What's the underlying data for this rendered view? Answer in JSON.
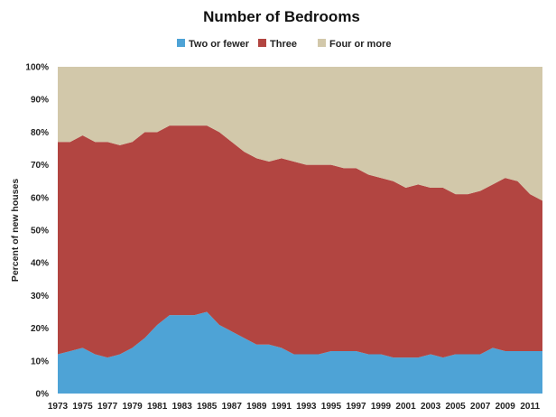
{
  "chart_data": {
    "type": "area",
    "stacked": true,
    "title": "Number of Bedrooms",
    "xlabel": "",
    "ylabel": "Percent of new houses",
    "ylim": [
      0,
      100
    ],
    "y_ticks": [
      "0%",
      "10%",
      "20%",
      "30%",
      "40%",
      "50%",
      "60%",
      "70%",
      "80%",
      "90%",
      "100%"
    ],
    "x_ticks": [
      "1973",
      "1975",
      "1977",
      "1979",
      "1981",
      "1983",
      "1985",
      "1987",
      "1989",
      "1991",
      "1993",
      "1995",
      "1997",
      "1999",
      "2001",
      "2003",
      "2005",
      "2007",
      "2009",
      "2011"
    ],
    "grid": false,
    "legend_position": "top",
    "x": [
      1973,
      1974,
      1975,
      1976,
      1977,
      1978,
      1979,
      1980,
      1981,
      1982,
      1983,
      1984,
      1985,
      1986,
      1987,
      1988,
      1989,
      1990,
      1991,
      1992,
      1993,
      1994,
      1995,
      1996,
      1997,
      1998,
      1999,
      2000,
      2001,
      2002,
      2003,
      2004,
      2005,
      2006,
      2007,
      2008,
      2009,
      2010,
      2011,
      2012
    ],
    "series": [
      {
        "name": "Two or fewer",
        "color": "#4ea3d6",
        "values": [
          12,
          13,
          14,
          12,
          11,
          12,
          14,
          17,
          21,
          24,
          24,
          24,
          25,
          21,
          19,
          17,
          15,
          15,
          14,
          12,
          12,
          12,
          13,
          13,
          13,
          12,
          12,
          11,
          11,
          11,
          12,
          11,
          12,
          12,
          12,
          14,
          13,
          13,
          13,
          13
        ]
      },
      {
        "name": "Three",
        "color": "#b24541",
        "values": [
          65,
          64,
          65,
          65,
          66,
          64,
          63,
          63,
          59,
          58,
          58,
          58,
          57,
          59,
          58,
          57,
          57,
          56,
          58,
          59,
          58,
          58,
          57,
          56,
          56,
          55,
          54,
          54,
          52,
          53,
          51,
          52,
          49,
          49,
          50,
          50,
          53,
          52,
          48,
          46
        ]
      },
      {
        "name": "Four or more",
        "color": "#d2c8aa",
        "values": [
          23,
          23,
          21,
          23,
          23,
          24,
          23,
          20,
          20,
          18,
          18,
          18,
          18,
          20,
          23,
          26,
          28,
          29,
          28,
          29,
          30,
          30,
          30,
          31,
          31,
          33,
          34,
          35,
          37,
          36,
          37,
          37,
          39,
          39,
          38,
          36,
          34,
          35,
          39,
          41
        ]
      }
    ]
  }
}
